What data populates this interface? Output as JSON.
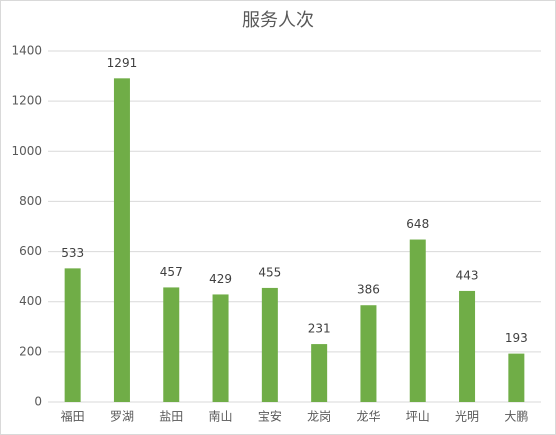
{
  "chart_data": {
    "type": "bar",
    "title": "服务人次",
    "categories": [
      "福田",
      "罗湖",
      "盐田",
      "南山",
      "宝安",
      "龙岗",
      "龙华",
      "坪山",
      "光明",
      "大鹏"
    ],
    "values": [
      533,
      1291,
      457,
      429,
      455,
      231,
      386,
      648,
      443,
      193
    ],
    "color": "#70ad47",
    "ylim": [
      0,
      1400
    ],
    "yticks": [
      0,
      200,
      400,
      600,
      800,
      1000,
      1200,
      1400
    ],
    "grid": true
  }
}
